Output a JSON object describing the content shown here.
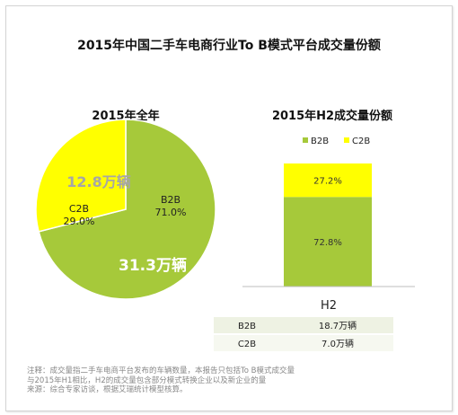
{
  "title": "2015年中国二手车电商行业To B模式平台成交量份额",
  "chart_data": [
    {
      "type": "pie",
      "title": "2015年全年",
      "slices": [
        {
          "name": "B2B",
          "percent_label": "71.0%",
          "value": 71.0,
          "volume_label": "31.3万辆",
          "color": "#a6c93a"
        },
        {
          "name": "C2B",
          "percent_label": "29.0%",
          "value": 29.0,
          "volume_label": "12.8万辆",
          "color": "#ffff00"
        }
      ]
    },
    {
      "type": "bar",
      "stacked": true,
      "title": "2015年H2成交量份额",
      "categories": [
        "H2"
      ],
      "legend_position": "top",
      "ylim": [
        0,
        100
      ],
      "series": [
        {
          "name": "B2B",
          "values": [
            72.8
          ],
          "label": "72.8%",
          "color": "#a6c93a"
        },
        {
          "name": "C2B",
          "values": [
            27.2
          ],
          "label": "27.2%",
          "color": "#ffff00"
        }
      ],
      "table": {
        "rows": [
          {
            "name": "B2B",
            "value": "18.7万辆"
          },
          {
            "name": "C2B",
            "value": "7.0万辆"
          }
        ],
        "row_colors": [
          "#eef2e3",
          "#f6f8f0"
        ]
      }
    }
  ],
  "notes": [
    "注释：成交量指二手车电商平台发布的车辆数量，本报告只包括To B模式成交量",
    "与2015年H1相比，H2的成交量包含部分模式转换企业以及新企业的量",
    "来源：综合专家访谈，根据艾瑞统计模型核算。"
  ]
}
